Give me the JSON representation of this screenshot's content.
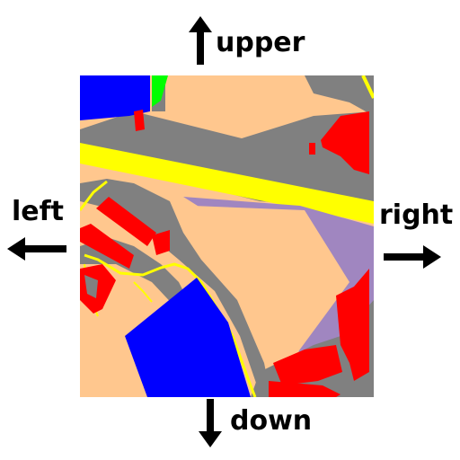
{
  "directions": {
    "up": "upper",
    "left": "left",
    "right": "right",
    "down": "down"
  },
  "map_legend_colors": {
    "road": "#808080",
    "main_road": "#ffff00",
    "building": "#ff0000",
    "land": "#ffc78e",
    "water": "#0000ff",
    "vegetation": "#00ff00",
    "other": "#a086c0"
  },
  "icons": [
    "arrow-up-icon",
    "arrow-left-icon",
    "arrow-right-icon",
    "arrow-down-icon"
  ]
}
